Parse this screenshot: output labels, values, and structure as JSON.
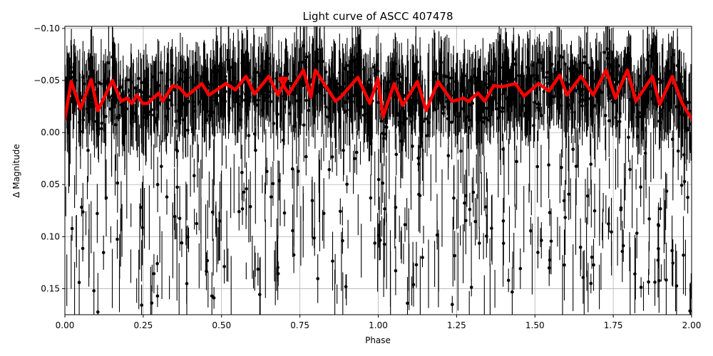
{
  "chart_data": {
    "type": "scatter",
    "title": "Light curve of ASCC 407478",
    "xlabel": "Phase",
    "ylabel": "Δ Magnitude",
    "xlim": [
      0.0,
      2.0
    ],
    "ylim": [
      0.175,
      -0.102
    ],
    "y_inverted": true,
    "grid": true,
    "legend": null,
    "xticks": [
      0.0,
      0.25,
      0.5,
      0.75,
      1.0,
      1.25,
      1.5,
      1.75,
      2.0
    ],
    "xtick_labels": [
      "0.00",
      "0.25",
      "0.50",
      "0.75",
      "1.00",
      "1.25",
      "1.50",
      "1.75",
      "2.00"
    ],
    "yticks": [
      -0.1,
      -0.05,
      0.0,
      0.05,
      0.1,
      0.15
    ],
    "ytick_labels": [
      "−0.10",
      "−0.05",
      "0.00",
      "0.05",
      "0.10",
      "0.15"
    ],
    "series": [
      {
        "name": "observations",
        "type": "errorbar",
        "color": "#000000",
        "description": "dense black points with vertical error bars spanning roughly -0.10 to 0.175 across phase 0-2, concentrated around -0.04"
      },
      {
        "name": "binned model",
        "type": "line",
        "color": "#ff0000",
        "linewidth": 4,
        "x": [
          0.0,
          0.02,
          0.05,
          0.084,
          0.105,
          0.152,
          0.179,
          0.198,
          0.214,
          0.23,
          0.248,
          0.264,
          0.3,
          0.312,
          0.344,
          0.366,
          0.389,
          0.437,
          0.46,
          0.514,
          0.544,
          0.578,
          0.605,
          0.651,
          0.68,
          0.707,
          0.685,
          0.714,
          0.761,
          0.785,
          0.799,
          0.864,
          0.883,
          0.935,
          0.973,
          0.999,
          1.015,
          1.051,
          1.078,
          1.125,
          1.153,
          1.191,
          1.236,
          1.272,
          1.288,
          1.318,
          1.34,
          1.368,
          1.395,
          1.438,
          1.465,
          1.511,
          1.545,
          1.579,
          1.602,
          1.647,
          1.686,
          1.727,
          1.757,
          1.795,
          1.822,
          1.875,
          1.898,
          1.938,
          1.97,
          2.0
        ],
        "y": [
          -0.013,
          -0.049,
          -0.023,
          -0.051,
          -0.021,
          -0.05,
          -0.03,
          -0.033,
          -0.028,
          -0.036,
          -0.028,
          -0.028,
          -0.038,
          -0.03,
          -0.045,
          -0.043,
          -0.035,
          -0.047,
          -0.036,
          -0.047,
          -0.041,
          -0.054,
          -0.037,
          -0.054,
          -0.036,
          -0.052,
          -0.052,
          -0.037,
          -0.06,
          -0.034,
          -0.06,
          -0.03,
          -0.035,
          -0.053,
          -0.028,
          -0.052,
          -0.015,
          -0.047,
          -0.026,
          -0.049,
          -0.021,
          -0.049,
          -0.03,
          -0.033,
          -0.03,
          -0.038,
          -0.03,
          -0.045,
          -0.044,
          -0.047,
          -0.035,
          -0.047,
          -0.04,
          -0.055,
          -0.036,
          -0.054,
          -0.036,
          -0.06,
          -0.033,
          -0.06,
          -0.03,
          -0.054,
          -0.027,
          -0.054,
          -0.028,
          -0.013
        ]
      }
    ]
  },
  "colors": {
    "data": "#000000",
    "model": "#ff0000",
    "grid": "#b0b0b0",
    "background": "#ffffff"
  }
}
